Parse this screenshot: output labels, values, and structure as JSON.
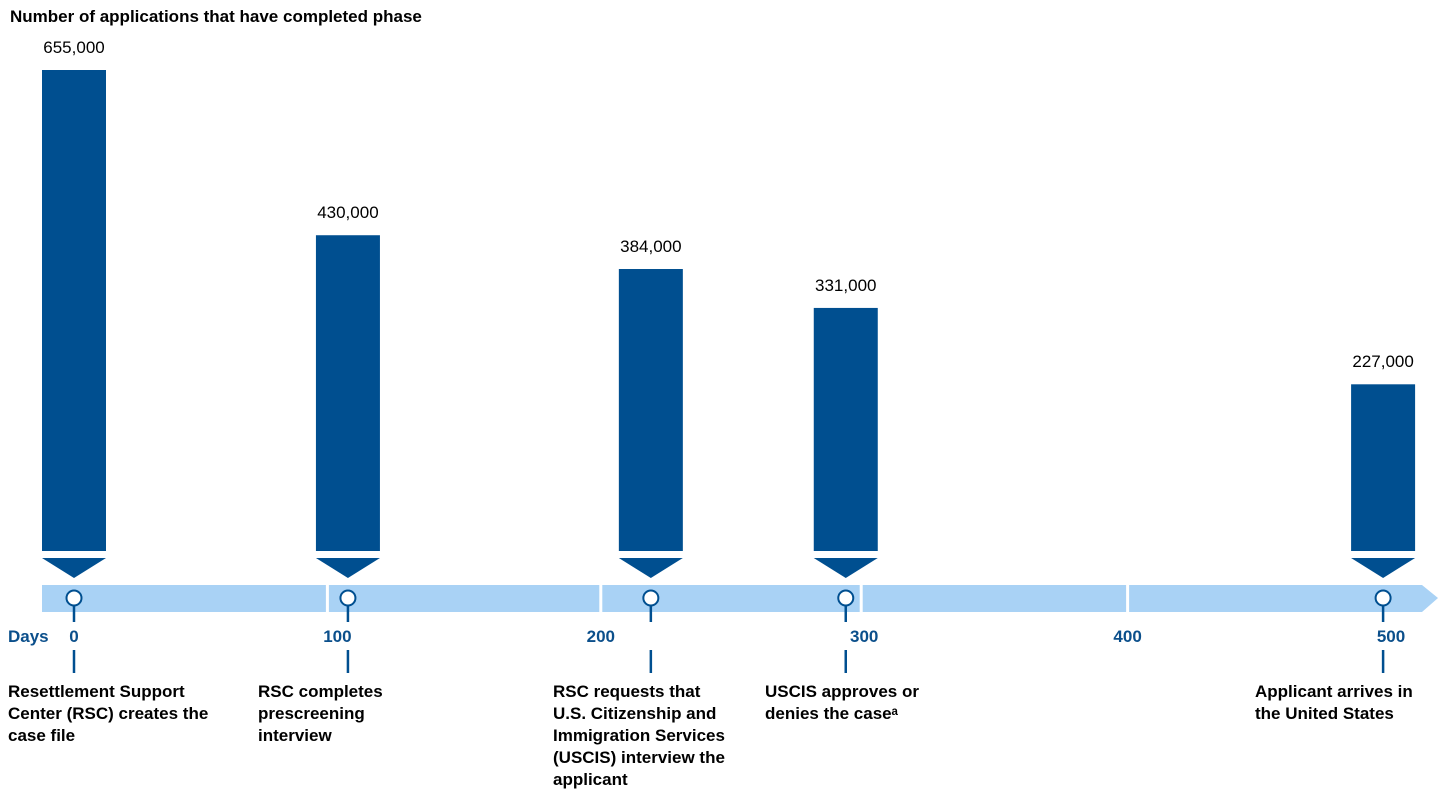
{
  "chart_data": {
    "type": "bar",
    "title": "Number of applications that have completed phase",
    "xlabel": "Days",
    "x_ticks": [
      0,
      100,
      200,
      300,
      400,
      500
    ],
    "xlim": [
      0,
      500
    ],
    "series": [
      {
        "values": [
          655000,
          430000,
          384000,
          331000,
          227000
        ],
        "value_labels": [
          "655,000",
          "430,000",
          "384,000",
          "331,000",
          "227,000"
        ]
      }
    ],
    "phase_days": [
      0,
      104,
      219,
      293,
      497
    ],
    "milestones": [
      {
        "lines": [
          "Resettlement Support",
          "Center (RSC) creates the",
          "case file"
        ]
      },
      {
        "lines": [
          "RSC completes",
          "prescreening",
          "interview"
        ]
      },
      {
        "lines": [
          "RSC requests that",
          "U.S. Citizenship and",
          "Immigration Services",
          "(USCIS) interview the",
          "applicant"
        ]
      },
      {
        "lines": [
          "USCIS approves or",
          "denies the caseᵃ"
        ]
      },
      {
        "lines": [
          "Applicant arrives in",
          "the United States"
        ]
      }
    ],
    "colors": {
      "bar": "#004f90",
      "timeline": "#a9d2f5",
      "axis_text": "#0b4f8b",
      "marker_stroke": "#004f90"
    }
  }
}
